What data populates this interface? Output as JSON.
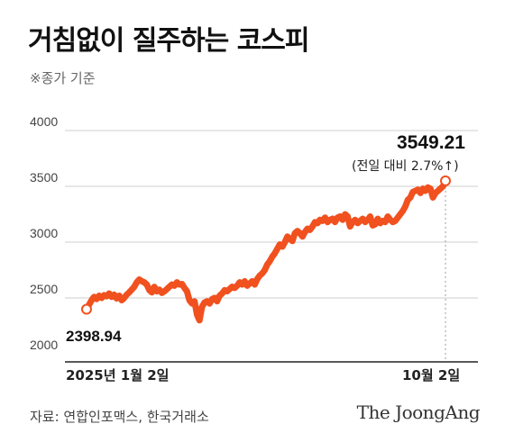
{
  "header": {
    "title": "거침없이 질주하는 코스피",
    "subtitle": "※종가 기준"
  },
  "footer": {
    "source": "자료: 연합인포맥스, 한국거래소",
    "brand": "The JoongAng"
  },
  "colors": {
    "line": "#f0511f",
    "grid": "#cfcfcf",
    "text": "#111111"
  },
  "chart_data": {
    "type": "line",
    "title": "거침없이 질주하는 코스피",
    "subtitle": "※종가 기준",
    "ylim": [
      2000,
      4000
    ],
    "y_ticks": [
      "2000",
      "2500",
      "3000",
      "3500",
      "4000"
    ],
    "x_labels": [
      "2025년 1월 2일",
      "10월 2일"
    ],
    "grid": true,
    "start": {
      "date": "2025-01-02",
      "value": 2398.94,
      "label": "2398.94"
    },
    "end": {
      "date": "2025-10-02",
      "value": 3549.21,
      "label": "3549.21",
      "note": "(전일 대비 2.7%↑)"
    },
    "series": [
      {
        "values": [
          2398.94,
          2440,
          2480,
          2510,
          2490,
          2520,
          2500,
          2525,
          2515,
          2540,
          2510,
          2530,
          2495,
          2520,
          2480,
          2500,
          2530,
          2550,
          2575,
          2600,
          2640,
          2665,
          2650,
          2640,
          2620,
          2570,
          2550,
          2600,
          2560,
          2575,
          2545,
          2560,
          2580,
          2600,
          2620,
          2610,
          2640,
          2620,
          2625,
          2590,
          2560,
          2480,
          2450,
          2470,
          2350,
          2300,
          2420,
          2460,
          2470,
          2450,
          2490,
          2500,
          2470,
          2520,
          2540,
          2570,
          2560,
          2580,
          2600,
          2590,
          2610,
          2640,
          2620,
          2650,
          2610,
          2630,
          2650,
          2620,
          2670,
          2700,
          2720,
          2750,
          2800,
          2830,
          2870,
          2900,
          2940,
          2980,
          2960,
          3000,
          3050,
          3030,
          3010,
          3080,
          3100,
          3080,
          3050,
          3090,
          3120,
          3110,
          3140,
          3180,
          3170,
          3200,
          3190,
          3220,
          3180,
          3200,
          3210,
          3180,
          3220,
          3230,
          3200,
          3250,
          3230,
          3140,
          3180,
          3200,
          3170,
          3190,
          3210,
          3180,
          3200,
          3230,
          3150,
          3160,
          3210,
          3170,
          3190,
          3180,
          3230,
          3200,
          3180,
          3190,
          3220,
          3250,
          3280,
          3320,
          3380,
          3400,
          3450,
          3460,
          3470,
          3440,
          3480,
          3460,
          3490,
          3480,
          3400,
          3440,
          3460,
          3480,
          3500,
          3549.21
        ]
      }
    ]
  }
}
